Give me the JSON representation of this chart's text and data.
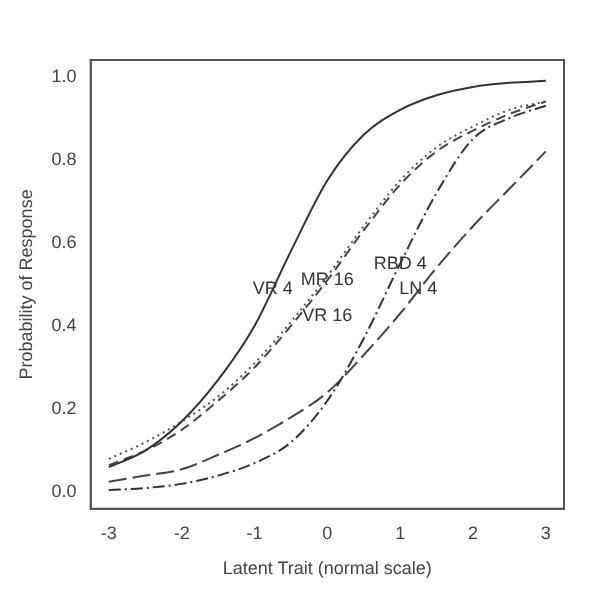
{
  "chart_data": {
    "type": "line",
    "xlabel": "Latent Trait (normal scale)",
    "ylabel": "Probability of Response",
    "x": [
      -3,
      -2.5,
      -2,
      -1.5,
      -1,
      -0.5,
      0,
      0.5,
      1,
      1.5,
      2,
      2.5,
      3
    ],
    "series": [
      {
        "color": "#333333",
        "line_style": "solid",
        "values": [
          0.06,
          0.1,
          0.17,
          0.27,
          0.4,
          0.58,
          0.75,
          0.86,
          0.92,
          0.955,
          0.975,
          0.985,
          0.99
        ]
      },
      {
        "color": "#444444",
        "line_style": "dashed",
        "values": [
          0.065,
          0.1,
          0.15,
          0.22,
          0.3,
          0.4,
          0.51,
          0.63,
          0.74,
          0.82,
          0.87,
          0.91,
          0.94
        ]
      },
      {
        "color": "#555555",
        "line_style": "dotted",
        "values": [
          0.08,
          0.12,
          0.17,
          0.23,
          0.31,
          0.41,
          0.52,
          0.64,
          0.75,
          0.83,
          0.88,
          0.92,
          0.94
        ]
      },
      {
        "color": "#333333",
        "line_style": "dashdot",
        "values": [
          0.005,
          0.01,
          0.02,
          0.04,
          0.07,
          0.12,
          0.22,
          0.37,
          0.55,
          0.72,
          0.85,
          0.9,
          0.93
        ]
      },
      {
        "color": "#444444",
        "line_style": "longdash",
        "values": [
          0.025,
          0.04,
          0.055,
          0.09,
          0.13,
          0.18,
          0.24,
          0.33,
          0.43,
          0.54,
          0.64,
          0.73,
          0.82
        ]
      }
    ],
    "annotations": [
      {
        "text": "VR 4",
        "x": -0.75,
        "y": 0.49
      },
      {
        "text": "MR 16",
        "x": 0,
        "y": 0.51
      },
      {
        "text": "VR 16",
        "x": 0,
        "y": 0.52
      },
      {
        "text": "LN 4",
        "x": 1.25,
        "y": 0.49
      },
      {
        "text": "RBD 4",
        "x": 1,
        "y": 0.55
      }
    ],
    "xlim": [
      -3.25,
      3.25
    ],
    "ylim": [
      -0.04,
      1.04
    ],
    "xticks": [
      -3,
      -2,
      -1,
      0,
      1,
      2,
      3
    ],
    "yticks": [
      {
        "value": 0,
        "label": "0.0"
      },
      0.2,
      0.4,
      0.6,
      0.8,
      {
        "value": 1,
        "label": "1.0"
      }
    ],
    "grid": false,
    "legend": false
  }
}
